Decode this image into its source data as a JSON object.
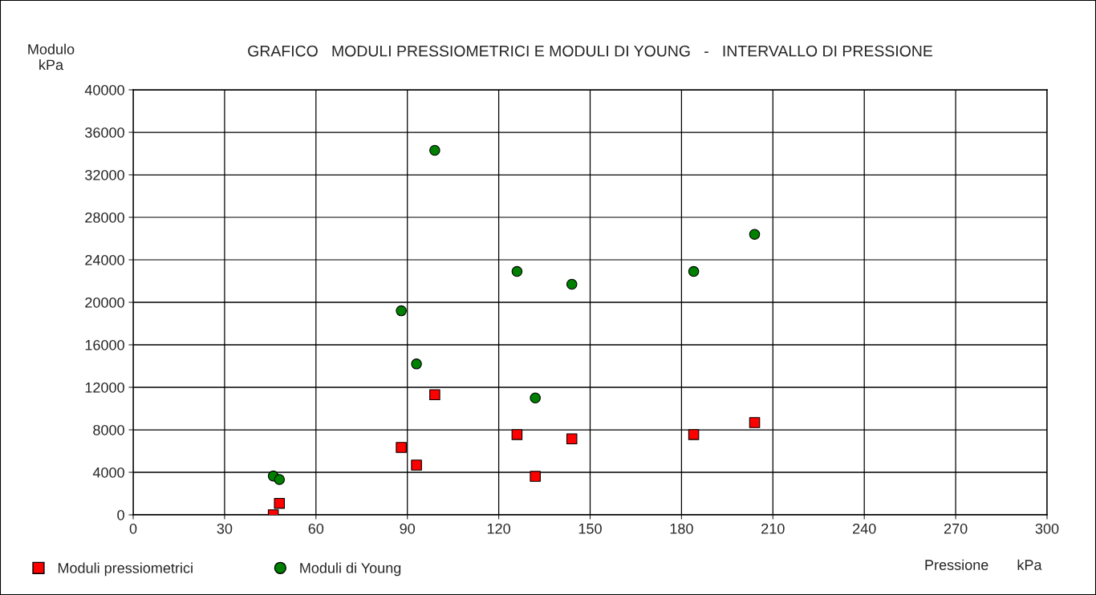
{
  "chart_data": {
    "type": "scatter",
    "title": "GRAFICO   MODULI PRESSIOMETRICI E MODULI DI YOUNG   -   INTERVALLO DI PRESSIONE",
    "xlabel": "Pressione       kPa",
    "ylabel": "Modulo\nkPa",
    "series": [
      {
        "name": "Moduli pressiometrici",
        "color": "#ff0000",
        "marker": "square",
        "x": [
          46,
          48,
          88,
          93,
          99,
          126,
          132,
          144,
          184,
          204
        ],
        "values": [
          0,
          1080,
          6340,
          4680,
          11300,
          7550,
          3620,
          7150,
          7550,
          8680
        ]
      },
      {
        "name": "Moduli di Young",
        "color": "#008000",
        "marker": "circle",
        "x": [
          46,
          48,
          88,
          93,
          99,
          126,
          132,
          144,
          184,
          204
        ],
        "values": [
          3650,
          3320,
          19200,
          14200,
          34300,
          22900,
          11000,
          21700,
          22900,
          26400
        ]
      }
    ],
    "xlim": [
      0,
      300
    ],
    "xticks": [
      0,
      30,
      60,
      90,
      120,
      150,
      180,
      210,
      240,
      270,
      300
    ],
    "ylim": [
      0,
      40000
    ],
    "yticks": [
      0,
      4000,
      8000,
      12000,
      16000,
      20000,
      24000,
      28000,
      32000,
      36000,
      40000
    ],
    "grid": true,
    "legend": "bottom"
  }
}
